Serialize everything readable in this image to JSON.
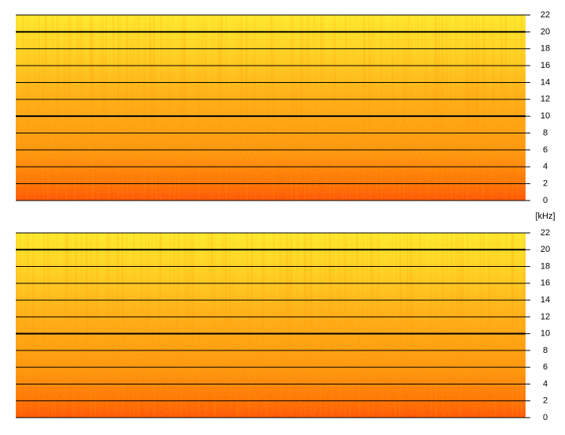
{
  "chart_data": [
    {
      "type": "spectrogram",
      "y_label": "[kHz]",
      "ylim": [
        0,
        22
      ],
      "yticks": [
        0,
        2,
        4,
        6,
        8,
        10,
        12,
        14,
        16,
        18,
        20,
        22
      ]
    },
    {
      "type": "spectrogram",
      "ylim": [
        0,
        22
      ],
      "yticks": [
        0,
        2,
        4,
        6,
        8,
        10,
        12,
        14,
        16,
        18,
        20,
        22
      ]
    }
  ]
}
